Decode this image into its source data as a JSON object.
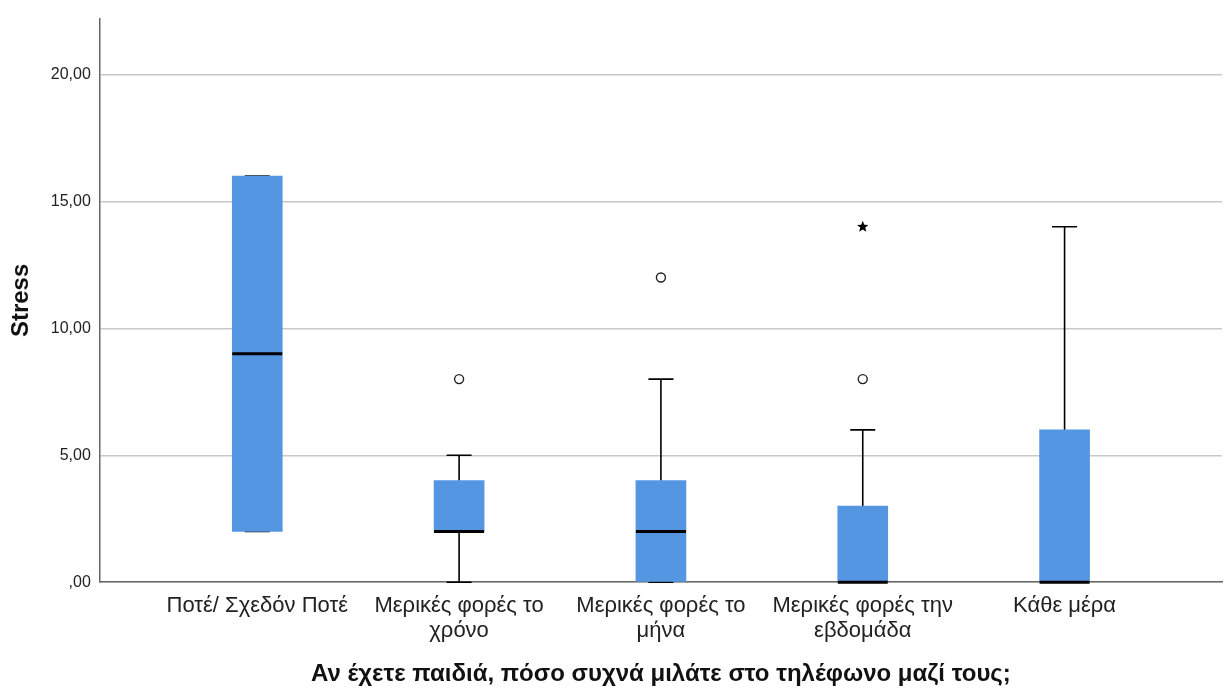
{
  "chart_data": {
    "type": "box",
    "xlabel": "Αν έχετε παιδιά, πόσο συχνά μιλάτε στο τηλέφωνο μαζί τους;",
    "ylabel": "Stress",
    "categories": [
      "Ποτέ/ Σχεδόν Ποτέ",
      "Μερικές φορές το χρόνο",
      "Μερικές φορές το μήνα",
      "Μερικές φορές την εβδομάδα",
      "Κάθε μέρα"
    ],
    "series": [
      {
        "color": "#5596e2",
        "boxes": [
          {
            "low": 2,
            "q1": 2,
            "median": 9,
            "q3": 16,
            "high": 16
          },
          {
            "low": 0,
            "q1": 2,
            "median": 2,
            "q3": 4,
            "high": 5,
            "outliers": [
              8
            ]
          },
          {
            "low": 0,
            "q1": 0,
            "median": 2,
            "q3": 4,
            "high": 8,
            "outliers": [
              12
            ]
          },
          {
            "low": 0,
            "q1": 0,
            "median": 0,
            "q3": 3,
            "high": 6,
            "outliers": [
              8
            ]
          },
          {
            "low": 0,
            "q1": 0,
            "median": 0,
            "q3": 6,
            "high": 14
          }
        ]
      },
      {
        "type": "scatter",
        "color": "#000000",
        "marker": "star",
        "x": [
          "Μερικές φορές την εβδομάδα"
        ],
        "values": [
          14
        ]
      }
    ],
    "ylim": [
      0,
      22.2
    ],
    "yticks": [
      {
        "value": 0,
        "label": ",00"
      },
      {
        "value": 5,
        "label": "5,00"
      },
      {
        "value": 10,
        "label": "10,00"
      },
      {
        "value": 15,
        "label": "15,00"
      },
      {
        "value": 20,
        "label": "20,00"
      }
    ],
    "grid": "y"
  }
}
